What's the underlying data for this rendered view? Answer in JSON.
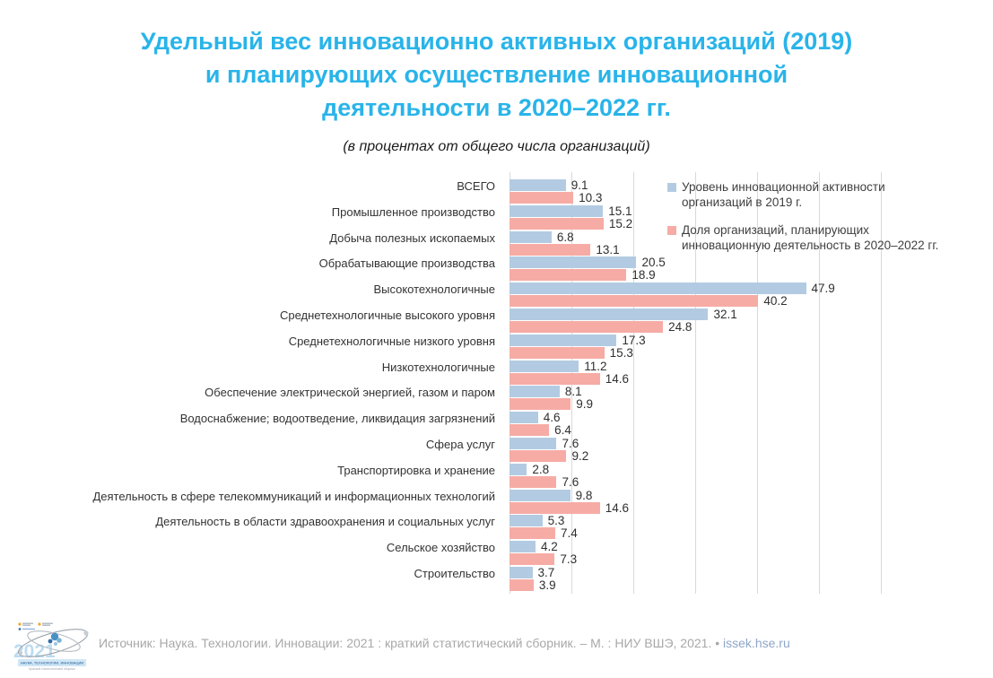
{
  "header": {
    "title_lines": [
      "Удельный вес инновационно активных организаций (2019)",
      "и планирующих осуществление инновационной",
      "деятельности в 2020–2022 гг."
    ],
    "subtitle": "(в процентах от общего числа организаций)"
  },
  "chart_data": {
    "type": "bar",
    "orientation": "horizontal",
    "title": "Удельный вес инновационно активных организаций (2019) и планирующих осуществление инновационной деятельности в 2020–2022 гг.",
    "subtitle": "(в процентах от общего числа организаций)",
    "categories": [
      "ВСЕГО",
      "Промышленное производство",
      "Добыча полезных ископаемых",
      "Обрабатывающие производства",
      "Высокотехнологичные",
      "Среднетехнологичные высокого уровня",
      "Среднетехнологичные низкого уровня",
      "Низкотехнологичные",
      "Обеспечение электрической энергией, газом и паром",
      "Водоснабжение; водоотведение, ликвидация загрязнений",
      "Сфера услуг",
      "Транспортировка и хранение",
      "Деятельность в сфере телекоммуникаций и информационных технологий",
      "Деятельность в области здравоохранения и социальных услуг",
      "Сельское хозяйство",
      "Строительство"
    ],
    "series": [
      {
        "name": "Уровень инновационной активности организаций в 2019 г.",
        "color": "#b3cbe2",
        "values": [
          9.1,
          15.1,
          6.8,
          20.5,
          47.9,
          32.1,
          17.3,
          11.2,
          8.1,
          4.6,
          7.6,
          2.8,
          9.8,
          5.3,
          4.2,
          3.7
        ]
      },
      {
        "name": "Доля организаций, планирующих инновационную деятельность в 2020–2022 гг.",
        "color": "#f6aca5",
        "values": [
          10.3,
          15.2,
          13.1,
          18.9,
          40.2,
          24.8,
          15.3,
          14.6,
          9.9,
          6.4,
          9.2,
          7.6,
          14.6,
          7.4,
          7.3,
          3.9
        ]
      }
    ],
    "xlim": [
      0,
      60
    ],
    "grid_step": 10,
    "grid": true,
    "legend_position": "top-right",
    "legend": [
      {
        "lines": [
          "Уровень инновационной активности",
          "организаций в 2019 г."
        ]
      },
      {
        "lines": [
          "Доля организаций, планирующих",
          "инновационную деятельность в 2020–2022 гг."
        ]
      }
    ]
  },
  "footer": {
    "source_text": "Источник: Наука. Технологии. Инновации: 2021 : краткий статистический сборник. – М. : НИУ ВШЭ, 2021. • ",
    "link": "issek.hse.ru",
    "logo": {
      "year": "2021",
      "band_text": "НАУКА, ТЕХНОЛОГИИ, ИННОВАЦИИ",
      "sub_text": "Краткий статистический сборник"
    }
  },
  "colors": {
    "title": "#29b4e9",
    "bar_2019": "#b3cbe2",
    "bar_planned": "#f6aca5",
    "gridline": "#d9d9d9",
    "label_text": "#333333",
    "footer_text": "#a8a8a8",
    "link_text": "#8ea6c8"
  }
}
